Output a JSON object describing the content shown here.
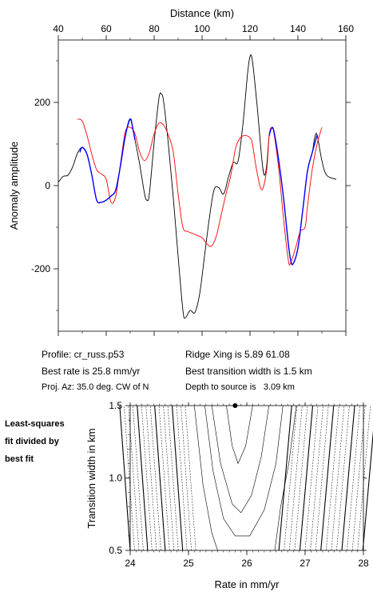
{
  "chart_data": [
    {
      "type": "line",
      "title": "",
      "xlabel": "Distance (km)",
      "ylabel": "Anomaly amplitude",
      "xlim": [
        40,
        160
      ],
      "ylim": [
        -350,
        350
      ],
      "x_ticks": [
        "40",
        "60",
        "80",
        "100",
        "120",
        "140",
        "160"
      ],
      "y_ticks": [
        "200",
        "0",
        "-200"
      ],
      "grid": false,
      "legend": "none",
      "series": [
        {
          "color": "#000000",
          "points": [
            [
              40,
              8
            ],
            [
              42,
              22
            ],
            [
              44,
              25
            ],
            [
              46,
              45
            ],
            [
              48,
              78
            ],
            [
              50,
              92
            ],
            [
              52,
              75
            ],
            [
              54,
              25
            ],
            [
              56,
              -35
            ],
            [
              58,
              -40
            ],
            [
              60,
              -35
            ],
            [
              62,
              -25
            ],
            [
              64,
              -10
            ],
            [
              66,
              50
            ],
            [
              68,
              120
            ],
            [
              70,
              160
            ],
            [
              72,
              110
            ],
            [
              74,
              50
            ],
            [
              76,
              -20
            ],
            [
              77,
              -35
            ],
            [
              78,
              -20
            ],
            [
              80,
              105
            ],
            [
              82,
              210
            ],
            [
              83,
              220
            ],
            [
              84,
              200
            ],
            [
              86,
              95
            ],
            [
              88,
              -30
            ],
            [
              90,
              -170
            ],
            [
              92,
              -300
            ],
            [
              93,
              -318
            ],
            [
              95,
              -300
            ],
            [
              97,
              -305
            ],
            [
              99,
              -260
            ],
            [
              101,
              -170
            ],
            [
              103,
              -80
            ],
            [
              105,
              -10
            ],
            [
              107,
              -5
            ],
            [
              109,
              -20
            ],
            [
              111,
              20
            ],
            [
              113,
              55
            ],
            [
              115,
              58
            ],
            [
              117,
              145
            ],
            [
              119,
              270
            ],
            [
              120,
              310
            ],
            [
              121,
              300
            ],
            [
              123,
              190
            ],
            [
              125,
              60
            ],
            [
              126,
              25
            ],
            [
              127,
              50
            ],
            [
              128,
              120
            ],
            [
              129,
              138
            ],
            [
              130,
              130
            ],
            [
              132,
              60
            ],
            [
              134,
              -30
            ],
            [
              136,
              -140
            ],
            [
              137,
              -180
            ],
            [
              138,
              -188
            ],
            [
              140,
              -150
            ],
            [
              142,
              -60
            ],
            [
              144,
              35
            ],
            [
              146,
              80
            ],
            [
              147,
              115
            ],
            [
              148,
              122
            ],
            [
              150,
              60
            ],
            [
              152,
              25
            ],
            [
              156,
              15
            ]
          ]
        },
        {
          "color": "#ff0000",
          "points": [
            [
              48,
              160
            ],
            [
              50,
              155
            ],
            [
              52,
              120
            ],
            [
              54,
              75
            ],
            [
              56,
              38
            ],
            [
              58,
              28
            ],
            [
              60,
              15
            ],
            [
              62,
              -40
            ],
            [
              64,
              -25
            ],
            [
              66,
              55
            ],
            [
              68,
              130
            ],
            [
              70,
              140
            ],
            [
              72,
              125
            ],
            [
              74,
              80
            ],
            [
              76,
              60
            ],
            [
              78,
              80
            ],
            [
              80,
              125
            ],
            [
              82,
              150
            ],
            [
              84,
              145
            ],
            [
              86,
              120
            ],
            [
              88,
              80
            ],
            [
              90,
              -20
            ],
            [
              92,
              -100
            ],
            [
              94,
              -110
            ],
            [
              96,
              -115
            ],
            [
              98,
              -120
            ],
            [
              100,
              -125
            ],
            [
              102,
              -140
            ],
            [
              104,
              -145
            ],
            [
              106,
              -120
            ],
            [
              108,
              -70
            ],
            [
              110,
              -20
            ],
            [
              112,
              25
            ],
            [
              114,
              90
            ],
            [
              116,
              115
            ],
            [
              118,
              120
            ],
            [
              120,
              115
            ],
            [
              121,
              100
            ],
            [
              123,
              30
            ],
            [
              125,
              -10
            ],
            [
              127,
              40
            ],
            [
              128,
              120
            ],
            [
              129,
              140
            ],
            [
              130,
              125
            ],
            [
              132,
              40
            ],
            [
              134,
              -80
            ],
            [
              136,
              -180
            ],
            [
              137,
              -185
            ],
            [
              139,
              -150
            ],
            [
              141,
              -110
            ],
            [
              143,
              -100
            ],
            [
              144,
              -50
            ],
            [
              146,
              40
            ],
            [
              148,
              100
            ],
            [
              150,
              140
            ]
          ]
        },
        {
          "color": "#0000ff",
          "points": [
            [
              49,
              80
            ],
            [
              50,
              92
            ],
            [
              52,
              75
            ],
            [
              54,
              25
            ],
            [
              56,
              -35
            ],
            [
              58,
              -40
            ],
            [
              60,
              -35
            ],
            [
              62,
              -25
            ],
            [
              64,
              -10
            ],
            [
              66,
              50
            ],
            [
              68,
              120
            ],
            [
              70,
              160
            ],
            [
              71,
              140
            ],
            [
              72,
              110
            ],
            [
              128,
              120
            ],
            [
              129,
              138
            ],
            [
              130,
              130
            ],
            [
              132,
              60
            ],
            [
              134,
              -30
            ],
            [
              136,
              -140
            ],
            [
              137,
              -180
            ],
            [
              138,
              -188
            ],
            [
              140,
              -150
            ],
            [
              142,
              -60
            ],
            [
              144,
              35
            ],
            [
              146,
              80
            ],
            [
              148,
              122
            ]
          ]
        }
      ]
    },
    {
      "type": "contour",
      "title": "",
      "xlabel": "Rate in mm/yr",
      "ylabel": "Transition width in km",
      "xlim": [
        24,
        28
      ],
      "ylim": [
        0.5,
        1.5
      ],
      "x_ticks": [
        "24",
        "25",
        "26",
        "27",
        "28"
      ],
      "y_ticks": [
        "1.5",
        "1.0",
        "0.5"
      ],
      "best_fit": {
        "rate": 25.8,
        "width": 1.5
      },
      "contours": [
        {
          "points": [
            [
              25.65,
              1.5
            ],
            [
              25.75,
              1.22
            ],
            [
              25.85,
              1.1
            ],
            [
              25.98,
              1.22
            ],
            [
              26.1,
              1.5
            ]
          ]
        },
        {
          "points": [
            [
              25.4,
              1.5
            ],
            [
              25.55,
              1.1
            ],
            [
              25.75,
              0.82
            ],
            [
              25.9,
              0.76
            ],
            [
              26.08,
              0.88
            ],
            [
              26.25,
              1.15
            ],
            [
              26.38,
              1.5
            ]
          ]
        },
        {
          "points": [
            [
              25.28,
              1.5
            ],
            [
              25.42,
              1.05
            ],
            [
              25.6,
              0.72
            ],
            [
              25.8,
              0.6
            ],
            [
              26.05,
              0.6
            ],
            [
              26.3,
              0.78
            ],
            [
              26.5,
              1.1
            ],
            [
              26.62,
              1.5
            ]
          ]
        },
        {
          "points": [
            [
              25.1,
              1.5
            ],
            [
              25.25,
              0.95
            ],
            [
              25.4,
              0.62
            ],
            [
              25.5,
              0.5
            ]
          ]
        },
        {
          "points": [
            [
              26.48,
              0.5
            ],
            [
              26.58,
              0.8
            ],
            [
              26.72,
              1.1
            ],
            [
              26.85,
              1.5
            ]
          ]
        }
      ]
    }
  ],
  "info": {
    "profile": "Profile: cr_russ.p53",
    "best_rate": "Best rate is 25.8 mm/yr",
    "proj_az": "Proj. Az: 35.0 deg. CW of N",
    "ridge_xing": "Ridge Xing is 5.89 61.08",
    "best_width": "Best transition width is 1.5 km",
    "depth": "Depth to source is   3.09 km"
  },
  "side_label": [
    "Least-squares",
    "fit divided by",
    "best fit"
  ]
}
